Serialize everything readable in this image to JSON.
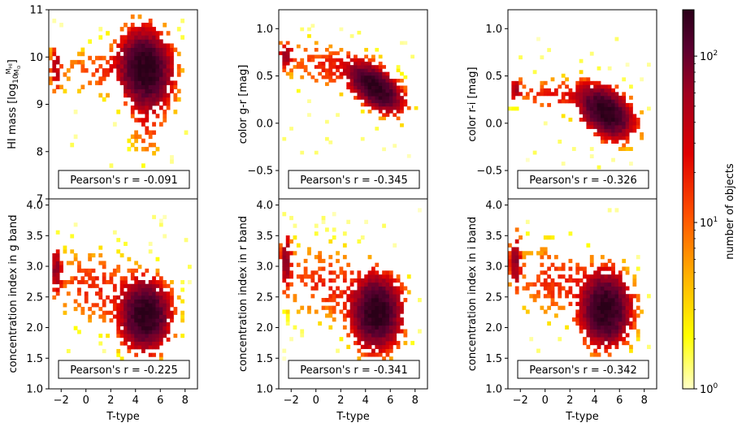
{
  "chart_data": [
    {
      "type": "heatmap",
      "ylabel": "HI mass [log10 MHI/M⊙]",
      "ylabel_parts": {
        "main": "HI mass",
        "log": "log",
        "sub": "10",
        "num": "M",
        "num_sub": "HI",
        "den": "M",
        "den_sub": "⊙"
      },
      "xlabel": "",
      "xlim": [
        -3,
        9
      ],
      "ylim": [
        7,
        11
      ],
      "yticks": [
        "7",
        "8",
        "9",
        "10",
        "11"
      ],
      "yticks_v": [
        7,
        8,
        9,
        10,
        11
      ],
      "xticks": [],
      "annotation": "Pearson's r = -0.091",
      "blobs": [
        {
          "x": 4.8,
          "y": 9.75,
          "sx": 1.05,
          "sy": 0.42,
          "rho": -0.1,
          "a": 1.0
        },
        {
          "x": 1.8,
          "y": 9.7,
          "sx": 2.6,
          "sy": 0.3,
          "rho": 0,
          "a": 0.06
        },
        {
          "x": 4.9,
          "y": 8.6,
          "sx": 0.8,
          "sy": 0.4,
          "rho": 0,
          "a": 0.06
        },
        {
          "x": -2.4,
          "y": 9.8,
          "sx": 0.25,
          "sy": 0.3,
          "rho": 0,
          "a": 0.16
        }
      ],
      "grid": {
        "nx": 40,
        "ny": 40,
        "xr": [
          -3,
          8.5
        ],
        "yr": [
          7.4,
          10.9
        ]
      }
    },
    {
      "type": "heatmap",
      "ylabel": "color g-r [mag]",
      "xlabel": "",
      "xlim": [
        -3,
        9
      ],
      "ylim": [
        -0.8,
        1.2
      ],
      "yticks": [
        "−0.5",
        "0.0",
        "0.5",
        "1.0"
      ],
      "yticks_v": [
        -0.5,
        0.0,
        0.5,
        1.0
      ],
      "xticks": [],
      "annotation": "Pearson's r = -0.345",
      "blobs": [
        {
          "x": 4.8,
          "y": 0.38,
          "sx": 1.1,
          "sy": 0.13,
          "rho": -0.55,
          "a": 1.0
        },
        {
          "x": 1.0,
          "y": 0.6,
          "sx": 2.2,
          "sy": 0.15,
          "rho": -0.3,
          "a": 0.07
        },
        {
          "x": -2.4,
          "y": 0.72,
          "sx": 0.3,
          "sy": 0.08,
          "rho": 0,
          "a": 0.22
        }
      ],
      "grid": {
        "nx": 40,
        "ny": 40,
        "xr": [
          -3,
          8.5
        ],
        "yr": [
          -0.4,
          1.05
        ]
      }
    },
    {
      "type": "heatmap",
      "ylabel": "color r-i [mag]",
      "xlabel": "",
      "xlim": [
        -3,
        9
      ],
      "ylim": [
        -0.8,
        1.2
      ],
      "yticks": [
        "−0.5",
        "0.0",
        "0.5",
        "1.0"
      ],
      "yticks_v": [
        -0.5,
        0.0,
        0.5,
        1.0
      ],
      "xticks": [],
      "annotation": "Pearson's r = -0.326",
      "blobs": [
        {
          "x": 4.9,
          "y": 0.12,
          "sx": 1.1,
          "sy": 0.14,
          "rho": -0.4,
          "a": 1.0
        },
        {
          "x": 1.0,
          "y": 0.3,
          "sx": 2.3,
          "sy": 0.1,
          "rho": -0.2,
          "a": 0.08
        },
        {
          "x": -2.4,
          "y": 0.36,
          "sx": 0.3,
          "sy": 0.06,
          "rho": 0,
          "a": 0.2
        }
      ],
      "grid": {
        "nx": 40,
        "ny": 40,
        "xr": [
          -3,
          8.5
        ],
        "yr": [
          -0.6,
          0.95
        ]
      }
    },
    {
      "type": "heatmap",
      "ylabel": "concentration index in g band",
      "xlabel": "T-type",
      "xlim": [
        -3,
        9
      ],
      "ylim": [
        1,
        4.1
      ],
      "yticks": [
        "1.0",
        "1.5",
        "2.0",
        "2.5",
        "3.0",
        "3.5",
        "4.0"
      ],
      "yticks_v": [
        1.0,
        1.5,
        2.0,
        2.5,
        3.0,
        3.5,
        4.0
      ],
      "xticks": [
        "−2",
        "0",
        "2",
        "4",
        "6",
        "8"
      ],
      "xticks_v": [
        -2,
        0,
        2,
        4,
        6,
        8
      ],
      "annotation": "Pearson's r = -0.225",
      "blobs": [
        {
          "x": 4.8,
          "y": 2.2,
          "sx": 1.0,
          "sy": 0.28,
          "rho": 0,
          "a": 1.0
        },
        {
          "x": 1.0,
          "y": 2.65,
          "sx": 2.4,
          "sy": 0.35,
          "rho": -0.2,
          "a": 0.07
        },
        {
          "x": -2.4,
          "y": 2.95,
          "sx": 0.25,
          "sy": 0.2,
          "rho": 0,
          "a": 0.25
        }
      ],
      "grid": {
        "nx": 40,
        "ny": 40,
        "xr": [
          -3,
          8.5
        ],
        "yr": [
          1.4,
          3.9
        ]
      }
    },
    {
      "type": "heatmap",
      "ylabel": "concentration index in r band",
      "xlabel": "T-type",
      "xlim": [
        -3,
        9
      ],
      "ylim": [
        1,
        4.1
      ],
      "yticks": [
        "1.0",
        "1.5",
        "2.0",
        "2.5",
        "3.0",
        "3.5",
        "4.0"
      ],
      "yticks_v": [
        1.0,
        1.5,
        2.0,
        2.5,
        3.0,
        3.5,
        4.0
      ],
      "xticks": [
        "−2",
        "0",
        "2",
        "4",
        "6",
        "8"
      ],
      "xticks_v": [
        -2,
        0,
        2,
        4,
        6,
        8
      ],
      "annotation": "Pearson's r = -0.341",
      "blobs": [
        {
          "x": 4.9,
          "y": 2.25,
          "sx": 1.0,
          "sy": 0.3,
          "rho": 0,
          "a": 1.0
        },
        {
          "x": 1.0,
          "y": 2.7,
          "sx": 2.4,
          "sy": 0.35,
          "rho": -0.2,
          "a": 0.07
        },
        {
          "x": -2.4,
          "y": 3.1,
          "sx": 0.25,
          "sy": 0.25,
          "rho": 0,
          "a": 0.25
        }
      ],
      "grid": {
        "nx": 40,
        "ny": 40,
        "xr": [
          -3,
          8.5
        ],
        "yr": [
          1.4,
          3.95
        ]
      }
    },
    {
      "type": "heatmap",
      "ylabel": "concentration index in i band",
      "xlabel": "T-type",
      "xlim": [
        -3,
        9
      ],
      "ylim": [
        1,
        4.1
      ],
      "yticks": [
        "1.0",
        "1.5",
        "2.0",
        "2.5",
        "3.0",
        "3.5",
        "4.0"
      ],
      "yticks_v": [
        1.0,
        1.5,
        2.0,
        2.5,
        3.0,
        3.5,
        4.0
      ],
      "xticks": [
        "−2",
        "0",
        "2",
        "4",
        "6",
        "8"
      ],
      "xticks_v": [
        -2,
        0,
        2,
        4,
        6,
        8
      ],
      "annotation": "Pearson's r = -0.342",
      "blobs": [
        {
          "x": 4.9,
          "y": 2.3,
          "sx": 1.0,
          "sy": 0.3,
          "rho": 0,
          "a": 1.0
        },
        {
          "x": 1.0,
          "y": 2.75,
          "sx": 2.4,
          "sy": 0.35,
          "rho": -0.2,
          "a": 0.07
        },
        {
          "x": -2.4,
          "y": 3.1,
          "sx": 0.25,
          "sy": 0.25,
          "rho": 0,
          "a": 0.25
        }
      ],
      "grid": {
        "nx": 40,
        "ny": 40,
        "xr": [
          -3,
          8.5
        ],
        "yr": [
          1.4,
          3.95
        ]
      }
    }
  ],
  "colorbar": {
    "label": "number of objects",
    "ticks": [
      "10",
      "10",
      "10"
    ],
    "tick_exponents": [
      "0",
      "1",
      "2"
    ],
    "tick_values": [
      1,
      10,
      100
    ],
    "range": [
      1,
      190
    ],
    "scale": "log",
    "colormap": "hot_r",
    "colors": [
      "#ffffc8",
      "#ffff00",
      "#ffb000",
      "#ff5000",
      "#e00000",
      "#a00020",
      "#5a0030",
      "#2a0018"
    ]
  }
}
